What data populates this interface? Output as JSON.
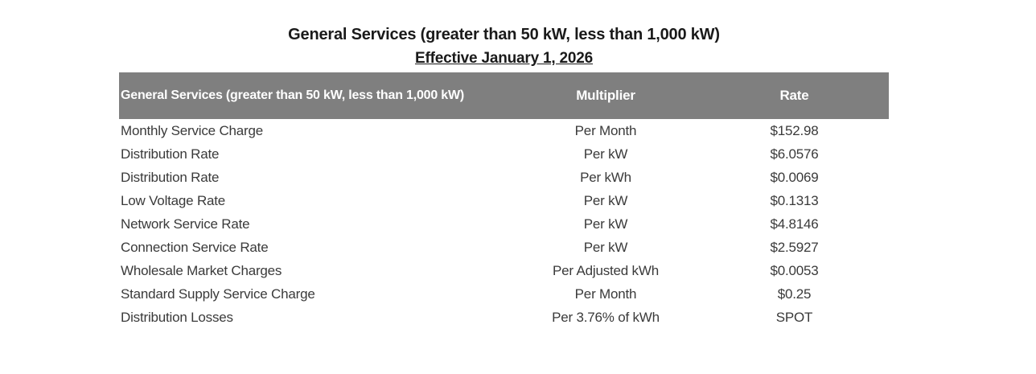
{
  "page": {
    "title": "General Services (greater than 50 kW, less than 1,000 kW)",
    "subtitle": "Effective January 1, 2026"
  },
  "colors": {
    "header_background": "#7f7f7f",
    "header_text": "#ffffff",
    "body_text": "#3a3a3a",
    "title_text": "#1a1a1a"
  },
  "table": {
    "header": {
      "service": "General Services (greater than 50 kW, less than 1,000 kW)",
      "multiplier": "Multiplier",
      "rate": "Rate"
    },
    "rows": [
      {
        "service": "Monthly Service Charge",
        "multiplier": "Per Month",
        "rate": "$152.98"
      },
      {
        "service": "Distribution Rate",
        "multiplier": "Per kW",
        "rate": "$6.0576"
      },
      {
        "service": "Distribution Rate",
        "multiplier": "Per kWh",
        "rate": "$0.0069"
      },
      {
        "service": "Low Voltage Rate",
        "multiplier": "Per kW",
        "rate": "$0.1313"
      },
      {
        "service": "Network Service Rate",
        "multiplier": "Per kW",
        "rate": "$4.8146"
      },
      {
        "service": "Connection Service Rate",
        "multiplier": "Per kW",
        "rate": "$2.5927"
      },
      {
        "service": "Wholesale Market Charges",
        "multiplier": "Per Adjusted kWh",
        "rate": "$0.0053"
      },
      {
        "service": "Standard Supply Service Charge",
        "multiplier": "Per Month",
        "rate": "$0.25"
      },
      {
        "service": "Distribution Losses",
        "multiplier": "Per 3.76% of kWh",
        "rate": "SPOT"
      }
    ]
  }
}
